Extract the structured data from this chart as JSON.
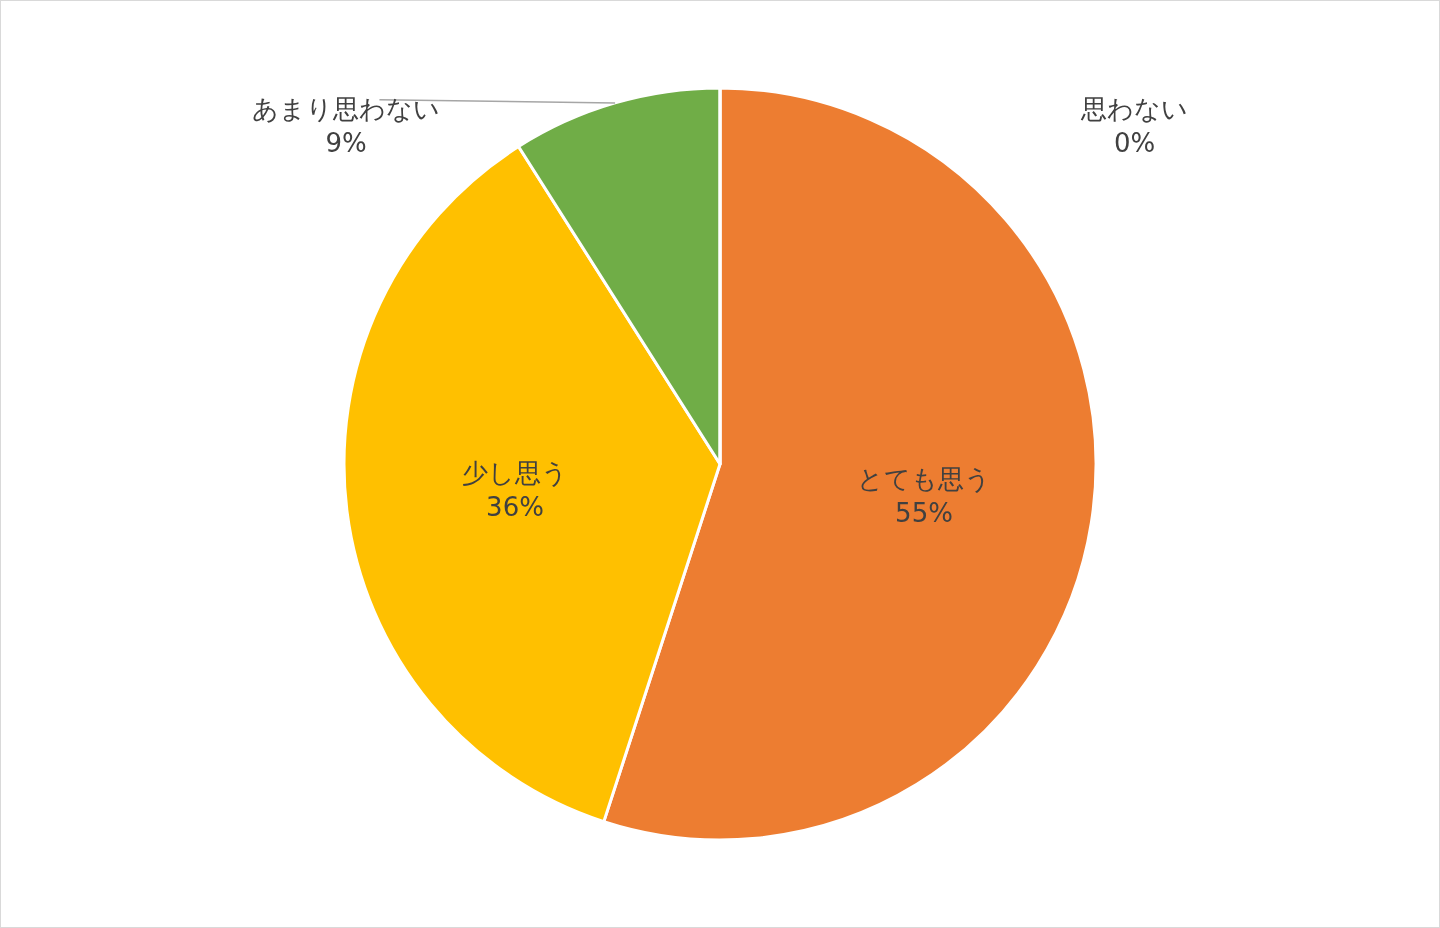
{
  "chart_data": {
    "type": "pie",
    "categories": [
      "とても思う",
      "少し思う",
      "あまり思わない",
      "思わない"
    ],
    "values": [
      55,
      36,
      9,
      0
    ],
    "value_labels": [
      "55%",
      "36%",
      "9%",
      "0%"
    ],
    "colors": [
      "#ed7d31",
      "#ffc000",
      "#70ad47",
      "#5b9bd5"
    ],
    "legend": false
  }
}
